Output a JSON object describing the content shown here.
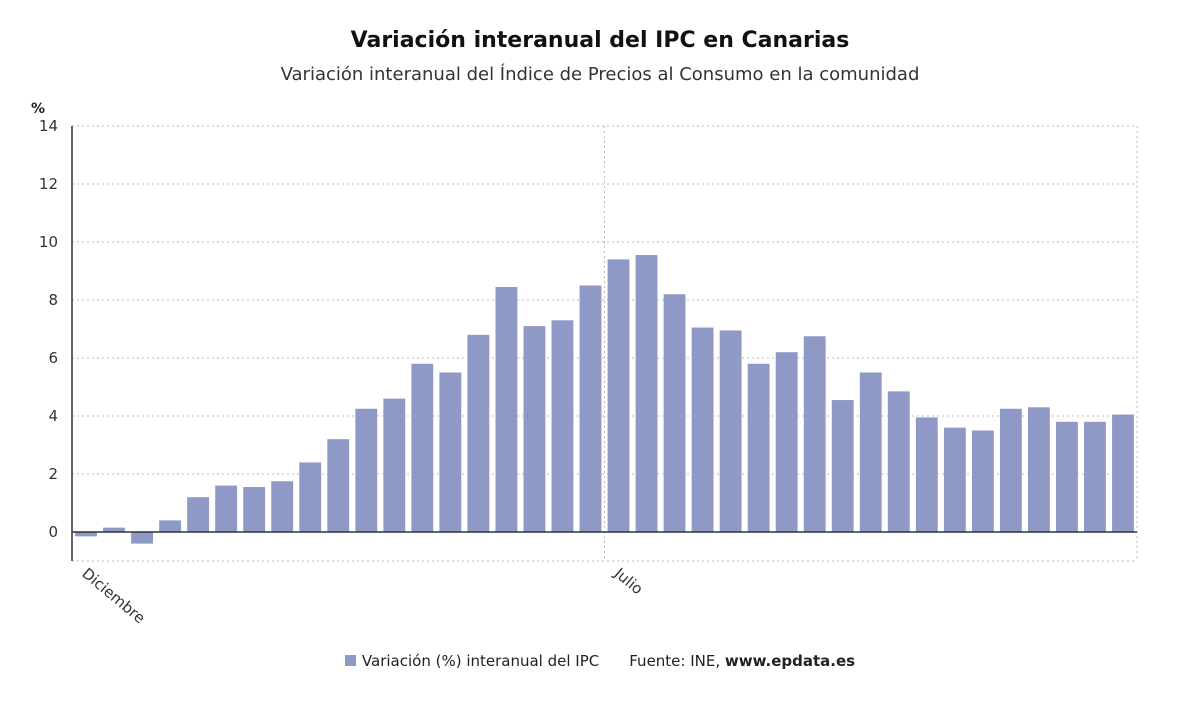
{
  "chart_data": {
    "type": "bar",
    "title": "Variación interanual del IPC en Canarias",
    "subtitle": "Variación interanual del Índice de Precios al Consumo en la comunidad",
    "ylabel": "%",
    "ylim": [
      -1,
      14
    ],
    "yticks": [
      0,
      2,
      4,
      6,
      8,
      10,
      12,
      14
    ],
    "grid": true,
    "xtick_labels": [
      {
        "label": "Diciembre",
        "index": 0
      },
      {
        "label": "Julio",
        "index": 19
      }
    ],
    "series": [
      {
        "name": "Variación (%) interanual del IPC",
        "color": "#8f99c6",
        "values": [
          -0.15,
          0.15,
          -0.4,
          0.4,
          1.2,
          1.6,
          1.55,
          1.75,
          2.4,
          3.2,
          4.25,
          4.6,
          5.8,
          5.5,
          6.8,
          8.45,
          7.1,
          7.3,
          8.5,
          9.4,
          9.55,
          8.2,
          7.05,
          6.95,
          5.8,
          6.2,
          6.75,
          4.55,
          5.5,
          4.85,
          3.95,
          3.6,
          3.5,
          4.25,
          4.3,
          3.8,
          3.8,
          4.05
        ]
      }
    ]
  },
  "legend": {
    "series_label": "Variación (%) interanual del IPC",
    "source_prefix": "Fuente: INE, ",
    "source_site": "www.epdata.es"
  }
}
